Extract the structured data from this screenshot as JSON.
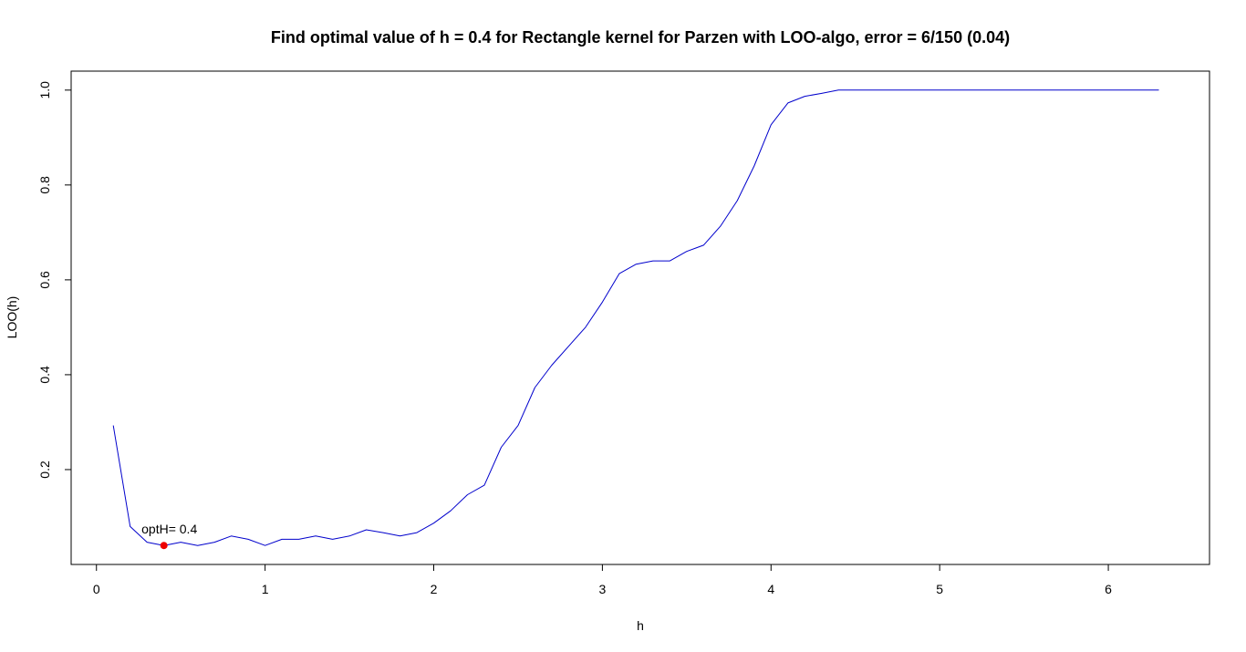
{
  "chart_data": {
    "type": "line",
    "title": "Find optimal value of h = 0.4 for Rectangle kernel for Parzen with LOO-algo, error = 6/150 (0.04)",
    "xlabel": "h",
    "ylabel": "LOO(h)",
    "xlim": [
      -0.15,
      6.6
    ],
    "ylim": [
      0.0,
      1.04
    ],
    "x_ticks": [
      0,
      1,
      2,
      3,
      4,
      5,
      6
    ],
    "x_tick_labels": [
      "0",
      "1",
      "2",
      "3",
      "4",
      "5",
      "6"
    ],
    "y_ticks": [
      0.2,
      0.4,
      0.6,
      0.8,
      1.0
    ],
    "y_tick_labels": [
      "0.2",
      "0.4",
      "0.6",
      "0.8",
      "1.0"
    ],
    "grid": false,
    "legend": "none",
    "series": [
      {
        "color": "#0000cc",
        "points": [
          [
            0.1,
            0.293
          ],
          [
            0.2,
            0.08
          ],
          [
            0.3,
            0.047
          ],
          [
            0.4,
            0.04
          ],
          [
            0.5,
            0.047
          ],
          [
            0.6,
            0.04
          ],
          [
            0.7,
            0.047
          ],
          [
            0.8,
            0.06
          ],
          [
            0.9,
            0.053
          ],
          [
            1.0,
            0.04
          ],
          [
            1.1,
            0.053
          ],
          [
            1.2,
            0.053
          ],
          [
            1.3,
            0.06
          ],
          [
            1.4,
            0.053
          ],
          [
            1.5,
            0.06
          ],
          [
            1.6,
            0.073
          ],
          [
            1.7,
            0.067
          ],
          [
            1.8,
            0.06
          ],
          [
            1.9,
            0.067
          ],
          [
            2.0,
            0.087
          ],
          [
            2.1,
            0.113
          ],
          [
            2.2,
            0.147
          ],
          [
            2.3,
            0.167
          ],
          [
            2.4,
            0.247
          ],
          [
            2.5,
            0.293
          ],
          [
            2.6,
            0.373
          ],
          [
            2.7,
            0.42
          ],
          [
            2.8,
            0.46
          ],
          [
            2.9,
            0.5
          ],
          [
            3.0,
            0.553
          ],
          [
            3.1,
            0.613
          ],
          [
            3.2,
            0.633
          ],
          [
            3.3,
            0.64
          ],
          [
            3.4,
            0.64
          ],
          [
            3.5,
            0.66
          ],
          [
            3.6,
            0.673
          ],
          [
            3.7,
            0.713
          ],
          [
            3.8,
            0.767
          ],
          [
            3.9,
            0.84
          ],
          [
            4.0,
            0.927
          ],
          [
            4.1,
            0.973
          ],
          [
            4.2,
            0.987
          ],
          [
            4.3,
            0.993
          ],
          [
            4.4,
            1.0
          ],
          [
            4.5,
            1.0
          ],
          [
            4.6,
            1.0
          ],
          [
            4.7,
            1.0
          ],
          [
            4.8,
            1.0
          ],
          [
            4.9,
            1.0
          ],
          [
            5.0,
            1.0
          ],
          [
            5.1,
            1.0
          ],
          [
            5.2,
            1.0
          ],
          [
            5.3,
            1.0
          ],
          [
            5.4,
            1.0
          ],
          [
            5.5,
            1.0
          ],
          [
            5.6,
            1.0
          ],
          [
            5.7,
            1.0
          ],
          [
            5.8,
            1.0
          ],
          [
            5.9,
            1.0
          ],
          [
            6.0,
            1.0
          ],
          [
            6.1,
            1.0
          ],
          [
            6.2,
            1.0
          ],
          [
            6.3,
            1.0
          ]
        ]
      }
    ],
    "highlight_point": {
      "x": 0.4,
      "y": 0.04,
      "color": "#ee0000",
      "label": "optH= 0.4"
    }
  }
}
